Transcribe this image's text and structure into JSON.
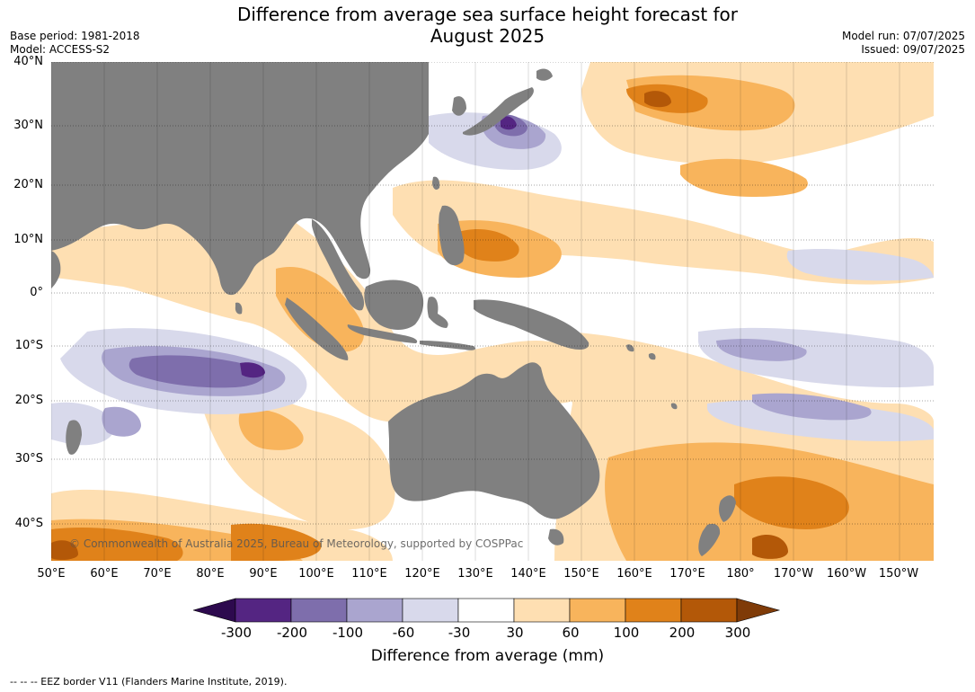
{
  "title": {
    "line1": "Difference from average sea surface height forecast for",
    "line2": "August 2025"
  },
  "meta": {
    "base_period": "Base period: 1981-2018",
    "model": "Model: ACCESS-S2",
    "model_run": "Model run: 07/07/2025",
    "issued": "Issued: 09/07/2025"
  },
  "map": {
    "lat_labels": [
      "40°N",
      "30°N",
      "20°N",
      "10°N",
      "0°",
      "10°S",
      "20°S",
      "30°S",
      "40°S"
    ],
    "lon_labels": [
      "50°E",
      "60°E",
      "70°E",
      "80°E",
      "90°E",
      "100°E",
      "110°E",
      "120°E",
      "130°E",
      "140°E",
      "150°E",
      "160°E",
      "170°E",
      "180°",
      "170°W",
      "160°W",
      "150°W"
    ],
    "credit": "© Commonwealth of Australia 2025, Bureau of Meteorology, supported by COSPPac",
    "land_color": "#808080",
    "ocean_color": "#ffffff"
  },
  "colorbar": {
    "title": "Difference from average (mm)",
    "tick_labels": [
      "-300",
      "-200",
      "-100",
      "-60",
      "-30",
      "30",
      "60",
      "100",
      "200",
      "300"
    ],
    "colors": [
      "#2d0a4e",
      "#542582",
      "#7e6eac",
      "#aaa5cf",
      "#d8d9eb",
      "#ffffff",
      "#fedfb2",
      "#f8b45c",
      "#e0821a",
      "#b35808",
      "#7f3b08"
    ]
  },
  "footer": "--  --  -- EEZ border V11 (Flanders Marine Institute, 2019)."
}
